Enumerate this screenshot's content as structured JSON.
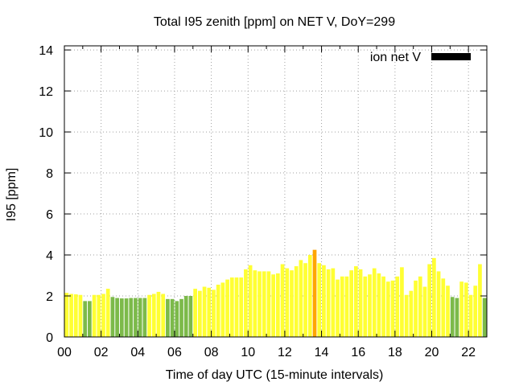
{
  "chart_data": {
    "type": "bar",
    "title": "Total I95 zenith [ppm] on NET V, DoY=299",
    "xlabel": "Time of day UTC (15-minute intervals)",
    "ylabel": "I95 [ppm]",
    "xlim": [
      0,
      22.75
    ],
    "ylim": [
      0,
      14.2
    ],
    "bin_hours": 0.25,
    "y_ticks": [
      0,
      2,
      4,
      6,
      8,
      10,
      12,
      14
    ],
    "x_ticks": [
      0,
      2,
      4,
      6,
      8,
      10,
      12,
      14,
      16,
      18,
      20,
      22
    ],
    "x_tick_labels": [
      "00",
      "02",
      "04",
      "06",
      "08",
      "10",
      "12",
      "14",
      "16",
      "18",
      "20",
      "22"
    ],
    "y_tick_labels": [
      "0",
      "2",
      "4",
      "6",
      "8",
      "10",
      "12",
      "14"
    ],
    "grid": true,
    "legend": {
      "label": "ion net V",
      "color": "#000000",
      "position": "top-right"
    },
    "colors": {
      "green": "#7cba4a",
      "yellow": "#ffff33",
      "orange": "#ffa500"
    },
    "bars": [
      {
        "x": 0.0,
        "value": 2.15,
        "color": "yellow"
      },
      {
        "x": 0.25,
        "value": 2.1,
        "color": "yellow"
      },
      {
        "x": 0.5,
        "value": 2.08,
        "color": "yellow"
      },
      {
        "x": 0.75,
        "value": 2.05,
        "color": "yellow"
      },
      {
        "x": 1.0,
        "value": 1.75,
        "color": "green"
      },
      {
        "x": 1.25,
        "value": 1.75,
        "color": "green"
      },
      {
        "x": 1.5,
        "value": 2.05,
        "color": "yellow"
      },
      {
        "x": 1.75,
        "value": 2.05,
        "color": "yellow"
      },
      {
        "x": 2.0,
        "value": 2.1,
        "color": "yellow"
      },
      {
        "x": 2.25,
        "value": 2.35,
        "color": "yellow"
      },
      {
        "x": 2.5,
        "value": 1.95,
        "color": "green"
      },
      {
        "x": 2.75,
        "value": 1.9,
        "color": "green"
      },
      {
        "x": 3.0,
        "value": 1.88,
        "color": "green"
      },
      {
        "x": 3.25,
        "value": 1.88,
        "color": "green"
      },
      {
        "x": 3.5,
        "value": 1.9,
        "color": "green"
      },
      {
        "x": 3.75,
        "value": 1.9,
        "color": "green"
      },
      {
        "x": 4.0,
        "value": 1.9,
        "color": "green"
      },
      {
        "x": 4.25,
        "value": 1.9,
        "color": "green"
      },
      {
        "x": 4.5,
        "value": 2.05,
        "color": "yellow"
      },
      {
        "x": 4.75,
        "value": 2.1,
        "color": "yellow"
      },
      {
        "x": 5.0,
        "value": 2.2,
        "color": "yellow"
      },
      {
        "x": 5.25,
        "value": 2.1,
        "color": "yellow"
      },
      {
        "x": 5.5,
        "value": 1.85,
        "color": "green"
      },
      {
        "x": 5.75,
        "value": 1.85,
        "color": "green"
      },
      {
        "x": 6.0,
        "value": 1.75,
        "color": "green"
      },
      {
        "x": 6.25,
        "value": 1.85,
        "color": "green"
      },
      {
        "x": 6.5,
        "value": 2.0,
        "color": "green"
      },
      {
        "x": 6.75,
        "value": 2.0,
        "color": "green"
      },
      {
        "x": 7.0,
        "value": 2.35,
        "color": "yellow"
      },
      {
        "x": 7.25,
        "value": 2.25,
        "color": "yellow"
      },
      {
        "x": 7.5,
        "value": 2.45,
        "color": "yellow"
      },
      {
        "x": 7.75,
        "value": 2.4,
        "color": "yellow"
      },
      {
        "x": 8.0,
        "value": 2.3,
        "color": "yellow"
      },
      {
        "x": 8.25,
        "value": 2.55,
        "color": "yellow"
      },
      {
        "x": 8.5,
        "value": 2.65,
        "color": "yellow"
      },
      {
        "x": 8.75,
        "value": 2.8,
        "color": "yellow"
      },
      {
        "x": 9.0,
        "value": 2.9,
        "color": "yellow"
      },
      {
        "x": 9.25,
        "value": 2.9,
        "color": "yellow"
      },
      {
        "x": 9.5,
        "value": 2.9,
        "color": "yellow"
      },
      {
        "x": 9.75,
        "value": 3.3,
        "color": "yellow"
      },
      {
        "x": 10.0,
        "value": 3.5,
        "color": "yellow"
      },
      {
        "x": 10.25,
        "value": 3.25,
        "color": "yellow"
      },
      {
        "x": 10.5,
        "value": 3.2,
        "color": "yellow"
      },
      {
        "x": 10.75,
        "value": 3.2,
        "color": "yellow"
      },
      {
        "x": 11.0,
        "value": 3.2,
        "color": "yellow"
      },
      {
        "x": 11.25,
        "value": 3.05,
        "color": "yellow"
      },
      {
        "x": 11.5,
        "value": 3.1,
        "color": "yellow"
      },
      {
        "x": 11.75,
        "value": 3.55,
        "color": "yellow"
      },
      {
        "x": 12.0,
        "value": 3.35,
        "color": "yellow"
      },
      {
        "x": 12.25,
        "value": 3.25,
        "color": "yellow"
      },
      {
        "x": 12.5,
        "value": 3.45,
        "color": "yellow"
      },
      {
        "x": 12.75,
        "value": 3.75,
        "color": "yellow"
      },
      {
        "x": 13.0,
        "value": 3.6,
        "color": "yellow"
      },
      {
        "x": 13.25,
        "value": 4.0,
        "color": "yellow"
      },
      {
        "x": 13.5,
        "value": 4.25,
        "color": "orange"
      },
      {
        "x": 13.75,
        "value": 3.6,
        "color": "yellow"
      },
      {
        "x": 14.0,
        "value": 3.5,
        "color": "yellow"
      },
      {
        "x": 14.25,
        "value": 3.3,
        "color": "yellow"
      },
      {
        "x": 14.5,
        "value": 3.35,
        "color": "yellow"
      },
      {
        "x": 14.75,
        "value": 2.8,
        "color": "yellow"
      },
      {
        "x": 15.0,
        "value": 2.95,
        "color": "yellow"
      },
      {
        "x": 15.25,
        "value": 2.95,
        "color": "yellow"
      },
      {
        "x": 15.5,
        "value": 3.25,
        "color": "yellow"
      },
      {
        "x": 15.75,
        "value": 3.45,
        "color": "yellow"
      },
      {
        "x": 16.0,
        "value": 3.3,
        "color": "yellow"
      },
      {
        "x": 16.25,
        "value": 2.95,
        "color": "yellow"
      },
      {
        "x": 16.5,
        "value": 3.05,
        "color": "yellow"
      },
      {
        "x": 16.75,
        "value": 3.35,
        "color": "yellow"
      },
      {
        "x": 17.0,
        "value": 3.1,
        "color": "yellow"
      },
      {
        "x": 17.25,
        "value": 2.95,
        "color": "yellow"
      },
      {
        "x": 17.5,
        "value": 2.7,
        "color": "yellow"
      },
      {
        "x": 17.75,
        "value": 2.75,
        "color": "yellow"
      },
      {
        "x": 18.0,
        "value": 2.95,
        "color": "yellow"
      },
      {
        "x": 18.25,
        "value": 3.4,
        "color": "yellow"
      },
      {
        "x": 18.5,
        "value": 2.05,
        "color": "yellow"
      },
      {
        "x": 18.75,
        "value": 2.25,
        "color": "yellow"
      },
      {
        "x": 19.0,
        "value": 2.75,
        "color": "yellow"
      },
      {
        "x": 19.25,
        "value": 2.95,
        "color": "yellow"
      },
      {
        "x": 19.5,
        "value": 2.45,
        "color": "yellow"
      },
      {
        "x": 19.75,
        "value": 3.55,
        "color": "yellow"
      },
      {
        "x": 20.0,
        "value": 3.85,
        "color": "yellow"
      },
      {
        "x": 20.25,
        "value": 3.2,
        "color": "yellow"
      },
      {
        "x": 20.5,
        "value": 2.85,
        "color": "yellow"
      },
      {
        "x": 20.75,
        "value": 2.5,
        "color": "yellow"
      },
      {
        "x": 21.0,
        "value": 1.95,
        "color": "green"
      },
      {
        "x": 21.25,
        "value": 1.9,
        "color": "green"
      },
      {
        "x": 21.5,
        "value": 2.7,
        "color": "yellow"
      },
      {
        "x": 21.75,
        "value": 2.65,
        "color": "yellow"
      },
      {
        "x": 22.0,
        "value": 2.05,
        "color": "yellow"
      },
      {
        "x": 22.25,
        "value": 2.5,
        "color": "yellow"
      },
      {
        "x": 22.5,
        "value": 3.55,
        "color": "yellow"
      },
      {
        "x": 22.75,
        "value": 1.9,
        "color": "green"
      }
    ]
  }
}
